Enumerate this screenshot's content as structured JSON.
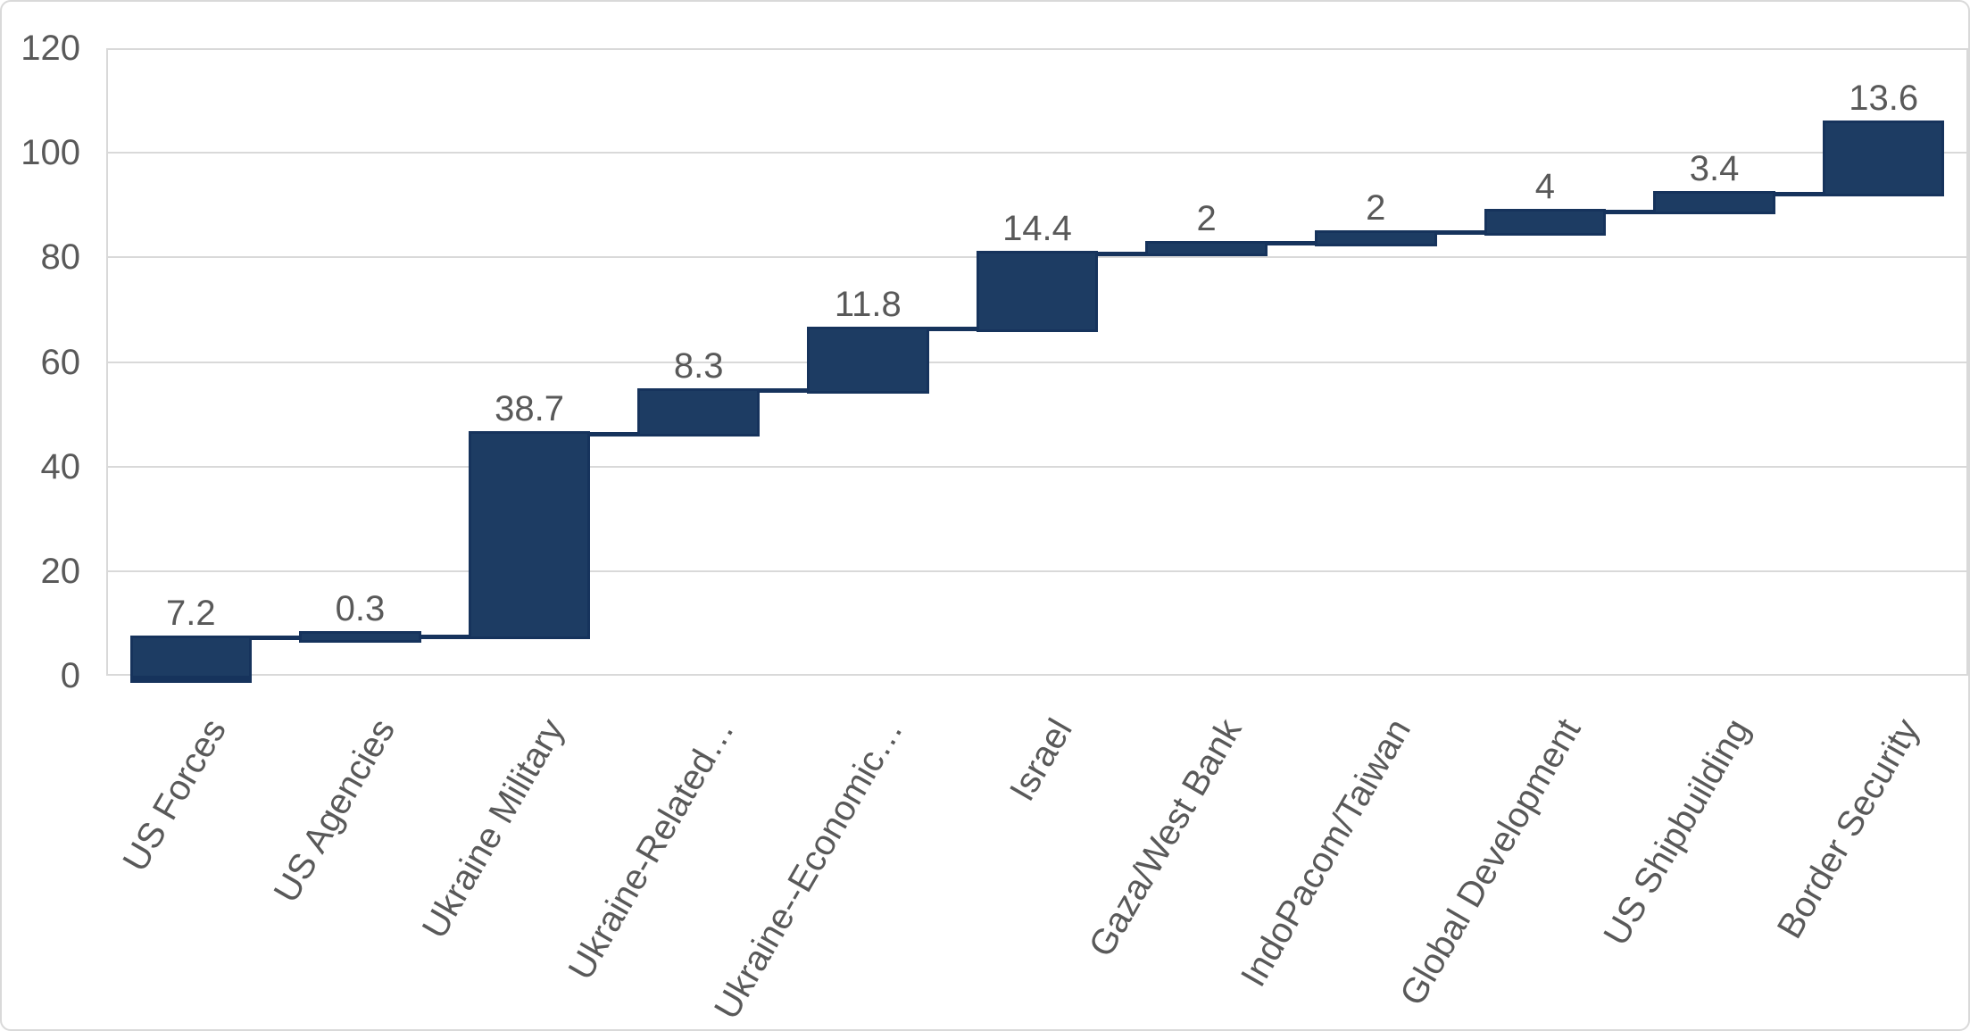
{
  "chart_data": {
    "type": "bar",
    "subtype": "waterfall",
    "title": "",
    "xlabel": "",
    "ylabel": "",
    "categories": [
      "US Forces",
      "US Agencies",
      "Ukraine Military",
      "Ukraine-Related…",
      "Ukraine--Economic…",
      "Israel",
      "Gaza/West Bank",
      "IndoPacom/Taiwan",
      "Global Development",
      "US Shipbuilding",
      "Border Security"
    ],
    "values": [
      7.2,
      0.3,
      38.7,
      8.3,
      11.8,
      14.4,
      2,
      2,
      4,
      3.4,
      13.6
    ],
    "data_labels": [
      "7.2",
      "0.3",
      "38.7",
      "8.3",
      "11.8",
      "14.4",
      "2",
      "2",
      "4",
      "3.4",
      "13.6"
    ],
    "cumulative_end": [
      7.2,
      7.5,
      46.2,
      54.5,
      66.3,
      80.7,
      82.7,
      84.7,
      88.7,
      92.1,
      105.7
    ],
    "ylim": [
      0,
      120
    ],
    "yticks": [
      0,
      20,
      40,
      60,
      80,
      100,
      120
    ],
    "grid": true,
    "legend_position": "none",
    "connector_lines": true,
    "category_label_rotation_deg": -60,
    "colors": {
      "bar_fill": "#1D3C63",
      "bar_border": "#16335C",
      "grid": "#D9D9D9",
      "text": "#595959",
      "background": "#FFFFFF"
    }
  }
}
